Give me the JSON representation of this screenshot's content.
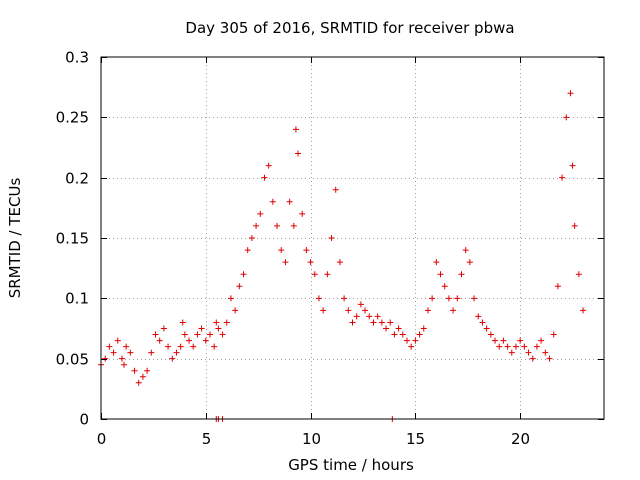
{
  "chart_data": {
    "type": "scatter",
    "title": "Day 305 of 2016, SRMTID for receiver pbwa",
    "xlabel": "GPS time / hours",
    "ylabel": "SRMTID / TECUs",
    "xlim": [
      0,
      24
    ],
    "ylim": [
      0,
      0.3
    ],
    "xticks": [
      0,
      5,
      10,
      15,
      20
    ],
    "xtick_labels": [
      "0",
      "5",
      "10",
      "15",
      "20"
    ],
    "yticks": [
      0,
      0.05,
      0.1,
      0.15,
      0.2,
      0.25,
      0.3
    ],
    "ytick_labels": [
      "0",
      "0.05",
      "0.1",
      "0.15",
      "0.2",
      "0.25",
      "0.3"
    ],
    "grid": true,
    "marker": "+",
    "color": "#e00000",
    "series": [
      {
        "name": "SRMTID",
        "x": [
          0.0,
          0.2,
          0.4,
          0.6,
          0.8,
          1.0,
          1.1,
          1.2,
          1.4,
          1.6,
          1.8,
          2.0,
          2.2,
          2.4,
          2.6,
          2.8,
          3.0,
          3.2,
          3.4,
          3.6,
          3.8,
          3.9,
          4.0,
          4.2,
          4.4,
          4.6,
          4.8,
          5.0,
          5.2,
          5.4,
          5.5,
          5.6,
          5.8,
          6.0,
          6.2,
          6.4,
          6.6,
          6.8,
          7.0,
          7.2,
          7.4,
          7.6,
          7.8,
          8.0,
          8.2,
          8.4,
          8.6,
          8.8,
          9.0,
          9.2,
          9.3,
          9.4,
          9.6,
          9.8,
          10.0,
          10.2,
          10.4,
          10.6,
          10.8,
          11.0,
          11.2,
          11.4,
          11.6,
          11.8,
          12.0,
          12.2,
          12.4,
          12.6,
          12.8,
          13.0,
          13.2,
          13.4,
          13.6,
          13.8,
          14.0,
          14.2,
          14.4,
          14.6,
          14.8,
          15.0,
          15.2,
          15.4,
          15.6,
          15.8,
          16.0,
          16.2,
          16.4,
          16.6,
          16.8,
          17.0,
          17.2,
          17.4,
          17.6,
          17.8,
          18.0,
          18.2,
          18.4,
          18.6,
          18.8,
          19.0,
          19.2,
          19.4,
          19.6,
          19.8,
          20.0,
          20.2,
          20.4,
          20.6,
          20.8,
          21.0,
          21.2,
          21.4,
          21.6,
          21.8,
          22.0,
          22.2,
          22.4,
          22.5,
          22.6,
          22.8,
          23.0,
          5.5,
          5.6,
          5.8,
          13.9
        ],
        "y": [
          0.045,
          0.05,
          0.06,
          0.055,
          0.065,
          0.05,
          0.045,
          0.06,
          0.055,
          0.04,
          0.03,
          0.035,
          0.04,
          0.055,
          0.07,
          0.065,
          0.075,
          0.06,
          0.05,
          0.055,
          0.06,
          0.08,
          0.07,
          0.065,
          0.06,
          0.07,
          0.075,
          0.065,
          0.07,
          0.06,
          0.08,
          0.075,
          0.07,
          0.08,
          0.1,
          0.09,
          0.11,
          0.12,
          0.14,
          0.15,
          0.16,
          0.17,
          0.2,
          0.21,
          0.18,
          0.16,
          0.14,
          0.13,
          0.18,
          0.16,
          0.24,
          0.22,
          0.17,
          0.14,
          0.13,
          0.12,
          0.1,
          0.09,
          0.12,
          0.15,
          0.19,
          0.13,
          0.1,
          0.09,
          0.08,
          0.085,
          0.095,
          0.09,
          0.085,
          0.08,
          0.085,
          0.08,
          0.075,
          0.08,
          0.07,
          0.075,
          0.07,
          0.065,
          0.06,
          0.065,
          0.07,
          0.075,
          0.09,
          0.1,
          0.13,
          0.12,
          0.11,
          0.1,
          0.09,
          0.1,
          0.12,
          0.14,
          0.13,
          0.1,
          0.085,
          0.08,
          0.075,
          0.07,
          0.065,
          0.06,
          0.065,
          0.06,
          0.055,
          0.06,
          0.065,
          0.06,
          0.055,
          0.05,
          0.06,
          0.065,
          0.055,
          0.05,
          0.07,
          0.11,
          0.2,
          0.25,
          0.27,
          0.21,
          0.16,
          0.12,
          0.09,
          0.0,
          0.0,
          0.0,
          0.0
        ]
      }
    ]
  }
}
